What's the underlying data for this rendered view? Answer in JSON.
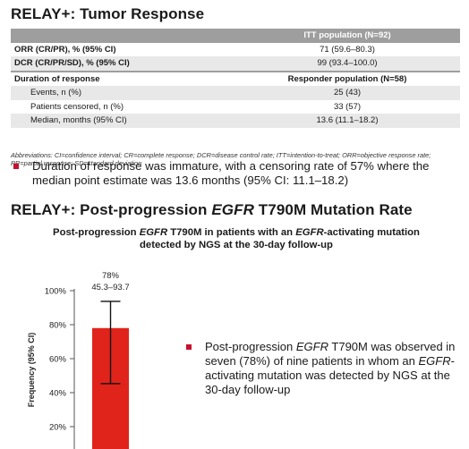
{
  "section1": {
    "title": "RELAY+: Tumor Response",
    "table": {
      "header": "ITT population (N=92)",
      "rows": [
        {
          "label": "ORR (CR/PR), % (95% CI)",
          "value": "71 (59.6–80.3)",
          "style": "bold"
        },
        {
          "label": "DCR (CR/PR/SD), % (95% CI)",
          "value": "99 (93.4–100.0)",
          "style": "bold",
          "shaded": true
        },
        {
          "label": "Duration of response",
          "value": "Responder population (N=58)",
          "style": "section"
        },
        {
          "label": "Events, n (%)",
          "value": "25 (43)",
          "style": "sub",
          "shaded": true
        },
        {
          "label": "Patients censored, n (%)",
          "value": "33 (57)",
          "style": "sub"
        },
        {
          "label": "Median, months (95% CI)",
          "value": "13.6 (11.1–18.2)",
          "style": "sub",
          "shaded": true
        }
      ]
    },
    "abbreviations": "Abbreviations: CI=confidence interval; CR=complete response; DCR=disease control rate; ITT=intention-to-treat; ORR=objective response rate; PR=partial response; SD=standard deviation",
    "bullet": "Duration of response was immature, with a censoring rate of 57% where the median point estimate was 13.6 months (95% CI: 11.1–18.2)"
  },
  "section2": {
    "title_pre": "RELAY+: Post-progression ",
    "title_em": "EGFR",
    "title_post": " T790M Mutation Rate",
    "figure_title": {
      "p1": "Post-progression ",
      "em1": "EGFR",
      "p2": " T790M in patients with an ",
      "em2": "EGFR",
      "p3": "-activating mutation",
      "line2": "detected by NGS at the 30-day follow-up"
    },
    "bullet": {
      "p1": "Post-progression ",
      "em1": "EGFR",
      "p2": " T790M was observed in seven (78%) of nine patients in whom an ",
      "em2": "EGFR",
      "p3": "-activating mutation was detected by NGS at the 30-day follow-up"
    }
  },
  "chart_data": {
    "type": "bar",
    "categories": [
      ""
    ],
    "values": [
      78
    ],
    "error_low": [
      45.3
    ],
    "error_high": [
      93.7
    ],
    "bar_label": "78%",
    "ci_label": "45.3–93.7",
    "ylabel": "Frequency (95% CI)",
    "ylim": [
      0,
      100
    ],
    "yticks": [
      20,
      40,
      60,
      80,
      100
    ],
    "ytick_labels": [
      "20%",
      "40%",
      "60%",
      "80%",
      "100%"
    ],
    "bar_color": "#e0241b"
  }
}
